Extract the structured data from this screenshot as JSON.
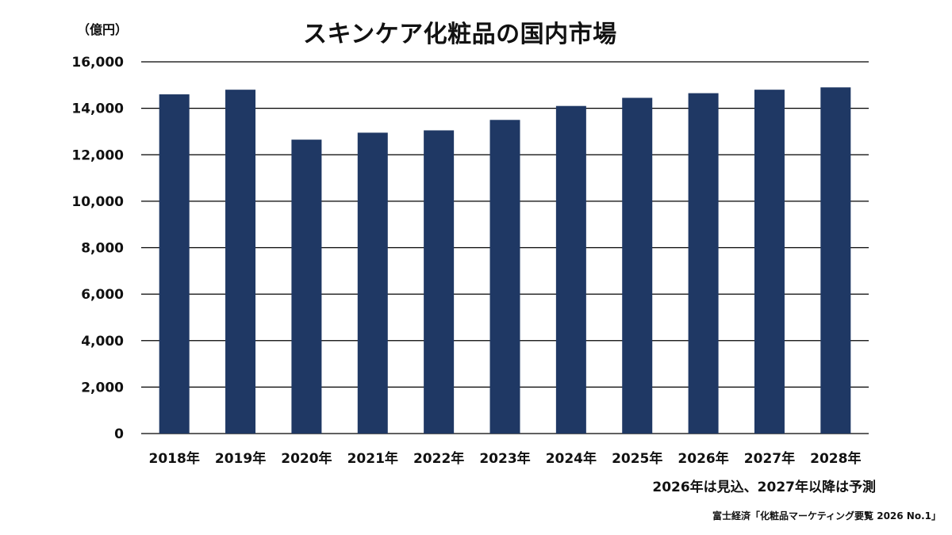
{
  "header": {
    "title": "スキンケア化粧品の国内市場",
    "unit": "（億円）"
  },
  "footer": {
    "note": "2026年は見込、2027年以降は予測",
    "source": "富士経済「化粧品マーケティング要覧 2026 No.1」"
  },
  "colors": {
    "bar": "#1f3864",
    "grid": "#000000",
    "text": "#111111"
  },
  "chart_data": {
    "type": "bar",
    "title": "スキンケア化粧品の国内市場",
    "ylabel": "（億円）",
    "categories": [
      "2018年",
      "2019年",
      "2020年",
      "2021年",
      "2022年",
      "2023年",
      "2024年",
      "2025年",
      "2026年",
      "2027年",
      "2028年"
    ],
    "values": [
      14600,
      14800,
      12650,
      12950,
      13050,
      13500,
      14100,
      14450,
      14650,
      14800,
      14900
    ],
    "ylim": [
      0,
      16000
    ],
    "yticks": [
      0,
      2000,
      4000,
      6000,
      8000,
      10000,
      12000,
      14000,
      16000
    ],
    "ytick_labels": [
      "0",
      "2,000",
      "4,000",
      "6,000",
      "8,000",
      "10,000",
      "12,000",
      "14,000",
      "16,000"
    ],
    "grid": true,
    "legend": "none"
  }
}
